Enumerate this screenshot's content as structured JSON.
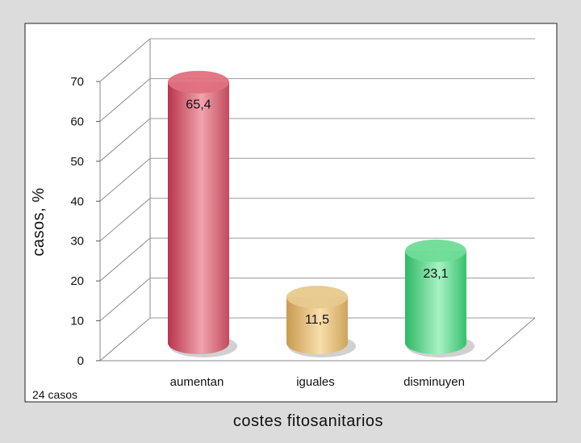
{
  "chart_data": {
    "type": "bar",
    "categories": [
      "aumentan",
      "iguales",
      "disminuyen"
    ],
    "values": [
      65.4,
      11.5,
      23.1
    ],
    "data_labels": [
      "65,4",
      "11,5",
      "23,1"
    ],
    "colors": [
      "#e0707e",
      "#e8c98e",
      "#6fdc97"
    ],
    "title": "",
    "xlabel": "costes fitosanitarios",
    "ylabel": "casos,  %",
    "ylim": [
      0,
      70
    ],
    "yticks": [
      0,
      10,
      20,
      30,
      40,
      50,
      60,
      70
    ],
    "grid": true,
    "note": "24 casos"
  }
}
